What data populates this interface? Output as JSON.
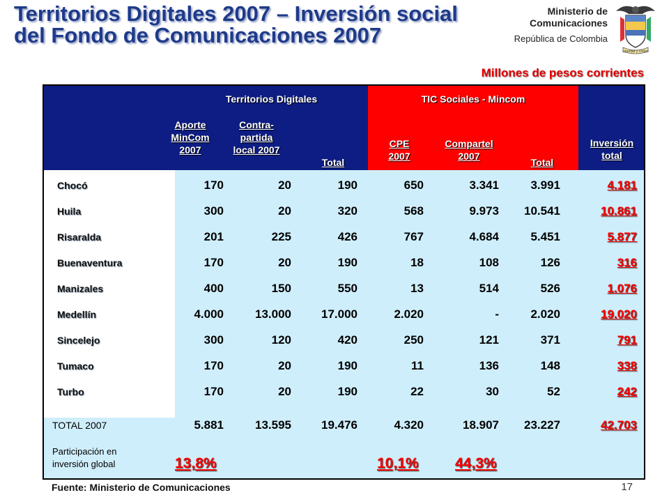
{
  "title": {
    "line1": "Territorios Digitales 2007 – Inversión social",
    "line2": "del Fondo de Comunicaciones 2007"
  },
  "header_right": {
    "line1": "Ministerio de",
    "line2": "Comunicaciones",
    "line3": "República de Colombia",
    "seal_text": "Libertad y Orden"
  },
  "units_note": "Millones de pesos corrientes",
  "table": {
    "group1": "Territorios Digitales",
    "group2": "TIC Sociales - Mincom",
    "col_aporte": [
      "Aporte",
      "MinCom",
      "2007"
    ],
    "col_contra": [
      "Contra-",
      "partida",
      "local 2007"
    ],
    "col_total1": "Total",
    "col_cpe": [
      "CPE",
      "2007"
    ],
    "col_compartel": [
      "Compartel",
      "2007"
    ],
    "col_total2": "Total",
    "col_inversion": [
      "Inversión",
      "total"
    ],
    "rows": [
      {
        "name": "Chocó",
        "aporte": "170",
        "contra": "20",
        "total1": "190",
        "cpe": "650",
        "compartel": "3.341",
        "total2": "3.991",
        "inversion": "4.181"
      },
      {
        "name": "Huila",
        "aporte": "300",
        "contra": "20",
        "total1": "320",
        "cpe": "568",
        "compartel": "9.973",
        "total2": "10.541",
        "inversion": "10.861"
      },
      {
        "name": "Risaralda",
        "aporte": "201",
        "contra": "225",
        "total1": "426",
        "cpe": "767",
        "compartel": "4.684",
        "total2": "5.451",
        "inversion": "5.877"
      },
      {
        "name": "Buenaventura",
        "aporte": "170",
        "contra": "20",
        "total1": "190",
        "cpe": "18",
        "compartel": "108",
        "total2": "126",
        "inversion": "316"
      },
      {
        "name": "Manizales",
        "aporte": "400",
        "contra": "150",
        "total1": "550",
        "cpe": "13",
        "compartel": "514",
        "total2": "526",
        "inversion": "1.076"
      },
      {
        "name": "Medellín",
        "aporte": "4.000",
        "contra": "13.000",
        "total1": "17.000",
        "cpe": "2.020",
        "compartel": "-",
        "total2": "2.020",
        "inversion": "19.020"
      },
      {
        "name": "Sincelejo",
        "aporte": "300",
        "contra": "120",
        "total1": "420",
        "cpe": "250",
        "compartel": "121",
        "total2": "371",
        "inversion": "791"
      },
      {
        "name": "Tumaco",
        "aporte": "170",
        "contra": "20",
        "total1": "190",
        "cpe": "11",
        "compartel": "136",
        "total2": "148",
        "inversion": "338"
      },
      {
        "name": "Turbo",
        "aporte": "170",
        "contra": "20",
        "total1": "190",
        "cpe": "22",
        "compartel": "30",
        "total2": "52",
        "inversion": "242"
      }
    ],
    "total_row": {
      "label": "TOTAL 2007",
      "aporte": "5.881",
      "contra": "13.595",
      "total1": "19.476",
      "cpe": "4.320",
      "compartel": "18.907",
      "total2": "23.227",
      "inversion": "42.703"
    },
    "participation": {
      "label_line1": "Participación en",
      "label_line2": "inversión global",
      "territorios": "13,8%",
      "cpe": "10,1%",
      "compartel": "44,3%"
    }
  },
  "footer": {
    "source": "Fuente: Ministerio de Comunicaciones",
    "page": "17"
  },
  "colors": {
    "navy": "#0d1d83",
    "red": "#ff0000",
    "light_blue": "#cfeefb",
    "title_blue": "#1f3a8a"
  }
}
